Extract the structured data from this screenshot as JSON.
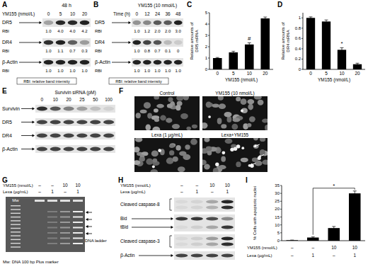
{
  "chart_data": [
    {
      "type": "bar",
      "panel": "C",
      "categories": [
        "0",
        "5",
        "10",
        "20"
      ],
      "values": [
        1,
        1.5,
        2.2,
        4.5
      ],
      "errors": [
        0.05,
        0.1,
        0.15,
        0.12
      ],
      "color": "#000000",
      "ylim": [
        0,
        5
      ],
      "yticks": [
        0,
        1,
        2,
        3,
        4,
        5
      ],
      "x_label": "YM155 (nmol/L)",
      "y_label": [
        "Relative amounts of",
        "DR5 mRNA"
      ],
      "annotations": [
        {
          "text": "#",
          "index": 2
        }
      ]
    },
    {
      "type": "bar",
      "panel": "D",
      "categories": [
        "0",
        "5",
        "10",
        "20"
      ],
      "values": [
        1,
        0.93,
        0.38,
        0.1
      ],
      "errors": [
        0.02,
        0.03,
        0.04,
        0.02
      ],
      "color": "#000000",
      "ylim": [
        0,
        1.1
      ],
      "yticks": [
        0,
        0.2,
        0.4,
        0.6,
        0.8,
        1
      ],
      "x_label": "YM155 (nmol/L)",
      "y_label": [
        "Relative amounts of",
        "DR4 mRNA"
      ],
      "annotations": [
        {
          "text": "*",
          "index": 2
        }
      ]
    },
    {
      "type": "bar",
      "panel": "I",
      "categories": [
        null,
        null,
        null,
        null
      ],
      "values": [
        0.3,
        2,
        8,
        30
      ],
      "errors": [
        0.1,
        0.4,
        1,
        1.5
      ],
      "color": "#000000",
      "ylim": [
        0,
        35
      ],
      "yticks": [
        0,
        5,
        10,
        15,
        20,
        25,
        30,
        35
      ],
      "y_label": [
        "% Cells with apoptotic nuclei"
      ],
      "conditions": [
        {
          "label": "YM155 (nmol/L)",
          "values": [
            "–",
            "–",
            "10",
            "10"
          ]
        },
        {
          "label": "Lexa (µg/mL)",
          "values": [
            "–",
            "1",
            "–",
            "1"
          ]
        }
      ],
      "annotations": [
        {
          "text": "*",
          "from": 1,
          "to": 3
        }
      ]
    }
  ],
  "panels": {
    "A": {
      "label": "A",
      "time": "48 h",
      "treatment": "YM155 (nmol/L)",
      "columns": [
        "0",
        "5",
        "10",
        "20"
      ],
      "rbi_label": "RBI",
      "rows": [
        {
          "name": "DR5",
          "rbi": [
            "1.0",
            "4.0",
            "4.0",
            "4.2"
          ]
        },
        {
          "name": "DR4",
          "rbi": [
            "1.0",
            "1.1",
            "0.7",
            "0.3"
          ]
        },
        {
          "name": "β-Actin",
          "rbi": [
            "1.0",
            "1.0",
            "1.0",
            "1.0"
          ]
        }
      ],
      "footnote": "RBI: relative band intensity"
    },
    "B": {
      "label": "B",
      "treatment": "YM155 (10 nmol/L)",
      "column_label": "Time (h)",
      "columns": [
        "0",
        "12",
        "24",
        "36",
        "48"
      ],
      "rbi_label": "RBI",
      "rows": [
        {
          "name": "DR5",
          "rbi": [
            "1.0",
            "1.2",
            "2.0",
            "2.0",
            "3.0"
          ]
        },
        {
          "name": "DR4",
          "rbi": [
            "1.0",
            "0.8",
            "0.7",
            "0.1",
            "0"
          ]
        },
        {
          "name": "β-Actin",
          "rbi": [
            "1.0",
            "1.0",
            "1.0",
            "1.0",
            "1.0"
          ]
        }
      ],
      "footnote": "RBI: relative band intensity"
    },
    "E": {
      "label": "E",
      "treatment": "Survivin siRNA (pM)",
      "columns": [
        "0",
        "10",
        "20",
        "25",
        "50",
        "100"
      ],
      "rows": [
        "Survivin",
        "DR5",
        "DR4",
        "β-Actin"
      ]
    },
    "F": {
      "label": "F",
      "images": [
        "Control",
        "YM155 (10 nmol/L)",
        "Lexa (1 µg/mL)",
        "Lexa+YM155"
      ]
    },
    "G": {
      "label": "G",
      "conditions": [
        {
          "label": "YM155 (nmol/L)",
          "values": [
            "–",
            "–",
            "10",
            "10"
          ]
        },
        {
          "label": "Lexa (µg/mL)",
          "values": [
            "–",
            "1",
            "–",
            "1"
          ]
        }
      ],
      "marker_lane": "Mw",
      "band_label": "DNA ladder",
      "footnote": "Mw: DNA 100 bp Plus marker"
    },
    "H": {
      "label": "H",
      "conditions": [
        {
          "label": "YM155 (nmol/L)",
          "values": [
            "–",
            "–",
            "10",
            "10"
          ]
        },
        {
          "label": "Lexa (µg/mL)",
          "values": [
            "–",
            "1",
            "–",
            "1"
          ]
        }
      ],
      "rows": [
        "Cleaved caspase-8",
        "Bid",
        "tBid",
        "Cleaved caspase-3",
        "β-Actin"
      ]
    }
  }
}
